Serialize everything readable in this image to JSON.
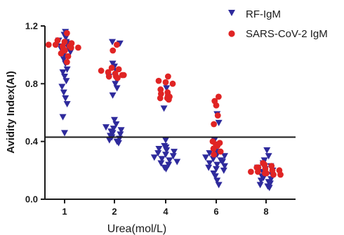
{
  "chart_data": {
    "type": "scatter",
    "xlabel": "Urea(mol/L)",
    "ylabel": "Avidity Index(AI)",
    "categories": [
      "1",
      "2",
      "4",
      "6",
      "8"
    ],
    "ylim": [
      0,
      1.2
    ],
    "yticks": [
      "0.0",
      "0.4",
      "0.8",
      "1.2"
    ],
    "reference_line_y": 0.43,
    "grid": false,
    "legend_position": "top-right",
    "series": [
      {
        "name": "RF-IgM",
        "marker": "triangle-down",
        "color": "#2e2a9c",
        "groups": [
          [
            1.16,
            1.14,
            1.12,
            1.1,
            1.09,
            1.08,
            1.06,
            1.05,
            1.04,
            1.03,
            1.02,
            1.01,
            0.99,
            0.97,
            0.94,
            0.9,
            0.88,
            0.85,
            0.82,
            0.78,
            0.74,
            0.7,
            0.66,
            0.57,
            0.46
          ],
          [
            1.09,
            1.08,
            0.94,
            0.92,
            0.89,
            0.85,
            0.83,
            0.8,
            0.77,
            0.72,
            0.55,
            0.52,
            0.5,
            0.49,
            0.48,
            0.47,
            0.46,
            0.45,
            0.44,
            0.43,
            0.42,
            0.41,
            0.4,
            0.39
          ],
          [
            0.77,
            0.7,
            0.63,
            0.41,
            0.37,
            0.36,
            0.35,
            0.34,
            0.33,
            0.32,
            0.31,
            0.3,
            0.29,
            0.28,
            0.27,
            0.26,
            0.25,
            0.24,
            0.22,
            0.21
          ],
          [
            0.59,
            0.53,
            0.41,
            0.37,
            0.35,
            0.33,
            0.32,
            0.31,
            0.3,
            0.29,
            0.28,
            0.27,
            0.26,
            0.25,
            0.24,
            0.23,
            0.22,
            0.21,
            0.2,
            0.18,
            0.16,
            0.13,
            0.1
          ],
          [
            0.34,
            0.3,
            0.27,
            0.25,
            0.23,
            0.22,
            0.21,
            0.2,
            0.19,
            0.18,
            0.17,
            0.16,
            0.15,
            0.14,
            0.13,
            0.12,
            0.11,
            0.1,
            0.09,
            0.08
          ]
        ]
      },
      {
        "name": "SARS-CoV-2 IgM",
        "marker": "circle",
        "color": "#e02424",
        "groups": [
          [
            1.15,
            1.1,
            1.09,
            1.08,
            1.07,
            1.07,
            1.06,
            1.06,
            1.05,
            1.05,
            1.04,
            1.03,
            1.01,
            0.99,
            0.95
          ],
          [
            1.07,
            1.03,
            0.91,
            0.9,
            0.89,
            0.88,
            0.87,
            0.86,
            0.86,
            0.85,
            0.85,
            0.84
          ],
          [
            0.85,
            0.82,
            0.81,
            0.8,
            0.76,
            0.74,
            0.73,
            0.72,
            0.71,
            0.7,
            0.7,
            0.69
          ],
          [
            0.71,
            0.68,
            0.65,
            0.58,
            0.52,
            0.4,
            0.39,
            0.38,
            0.37,
            0.35,
            0.33,
            0.31
          ],
          [
            0.25,
            0.24,
            0.23,
            0.22,
            0.22,
            0.21,
            0.2,
            0.2,
            0.19,
            0.19,
            0.18,
            0.18,
            0.17,
            0.17
          ]
        ]
      }
    ]
  }
}
